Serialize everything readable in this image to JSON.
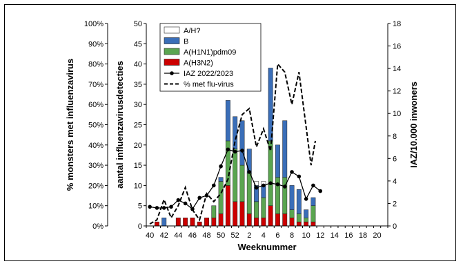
{
  "chart_data": {
    "type": "bar",
    "x_tick_labels": [
      "40",
      "42",
      "44",
      "46",
      "48",
      "50",
      "52",
      "2",
      "4",
      "6",
      "8",
      "10",
      "12",
      "14",
      "16",
      "18",
      "20"
    ],
    "weeks": [
      "40",
      "41",
      "42",
      "43",
      "44",
      "45",
      "46",
      "47",
      "48",
      "49",
      "50",
      "51",
      "52",
      "1",
      "2",
      "3",
      "4",
      "5",
      "6",
      "7",
      "8",
      "9",
      "10",
      "11"
    ],
    "xlabel": "Weeknummer",
    "ylabel_left": "% monsters met influenzavirus",
    "ylabel_middle": "aantal influenzavirusdetecties",
    "ylabel_right": "IAZ/10.000 inwoners",
    "ylim_left_percent": [
      0,
      100
    ],
    "ylim_middle_count": [
      0,
      50
    ],
    "ylim_right_iaz": [
      0,
      18
    ],
    "left_ticks": [
      "0%",
      "10%",
      "20%",
      "30%",
      "40%",
      "50%",
      "60%",
      "70%",
      "80%",
      "90%",
      "100%"
    ],
    "middle_ticks": [
      "0",
      "5",
      "10",
      "15",
      "20",
      "25",
      "30",
      "35",
      "40",
      "45",
      "50"
    ],
    "right_ticks": [
      "0",
      "2",
      "4",
      "6",
      "8",
      "10",
      "12",
      "14",
      "16",
      "18"
    ],
    "series": [
      {
        "name": "A(H3N2)",
        "color": "#cc0000",
        "values": [
          0,
          1,
          0,
          0,
          2,
          2,
          2,
          1,
          2,
          2,
          3,
          10,
          6,
          6,
          3,
          2,
          2,
          5,
          3,
          3,
          2,
          1,
          1,
          1
        ]
      },
      {
        "name": "A(H1N1)pdm09",
        "color": "#5aa550",
        "values": [
          0,
          0,
          0,
          0,
          0,
          0,
          0,
          0,
          0,
          3,
          8,
          11,
          13,
          9,
          10,
          4,
          5,
          16,
          9,
          9,
          2,
          2,
          1,
          4
        ]
      },
      {
        "name": "B",
        "color": "#3a6eb8",
        "values": [
          0,
          0,
          2,
          0,
          0,
          0,
          0,
          0,
          0,
          0,
          1,
          10,
          8,
          11,
          6,
          4,
          3,
          18,
          8,
          14,
          6,
          6,
          2,
          2
        ]
      },
      {
        "name": "A/H?",
        "color": "#ffffff",
        "values": [
          0,
          0,
          0,
          0,
          0,
          0,
          0,
          0,
          0,
          0,
          0,
          0,
          0,
          0,
          0,
          1,
          1,
          0,
          0,
          0,
          0,
          0,
          0,
          0
        ]
      }
    ],
    "iaz_name": "IAZ 2022/2023",
    "iaz_values": [
      1.7,
      1.6,
      1.6,
      1.7,
      2.3,
      2.0,
      1.5,
      2.5,
      2.7,
      3.6,
      5.3,
      6.8,
      6.6,
      6.7,
      4.8,
      3.4,
      3.6,
      3.8,
      3.7,
      3.5,
      4.8,
      4.4,
      2.4,
      3.6,
      3.1
    ],
    "iaz_weeks": [
      "40",
      "41",
      "42",
      "43",
      "44",
      "45",
      "46",
      "47",
      "48",
      "49",
      "50",
      "51",
      "52",
      "1",
      "2",
      "3",
      "4",
      "5",
      "6",
      "7",
      "8",
      "9",
      "10",
      "11",
      "12"
    ],
    "pct_name": "% met flu-virus",
    "pct_values": [
      1,
      3,
      13,
      4,
      10,
      19,
      8,
      3,
      16,
      12,
      16,
      23,
      42,
      55,
      58,
      39,
      48,
      37,
      80,
      76,
      60,
      76,
      49,
      30,
      42
    ],
    "pct_weeks": [
      "40",
      "41",
      "42",
      "43",
      "44",
      "45",
      "46",
      "47",
      "48",
      "49",
      "50",
      "51",
      "52",
      "1",
      "2",
      "3",
      "4",
      "5",
      "6",
      "7",
      "8",
      "9",
      "10",
      "11",
      "11b"
    ],
    "legend_order": [
      "A/H?",
      "B",
      "A(H1N1)pdm09",
      "A(H3N2)",
      "IAZ 2022/2023",
      "% met flu-virus"
    ],
    "legend_position": "top-left"
  }
}
